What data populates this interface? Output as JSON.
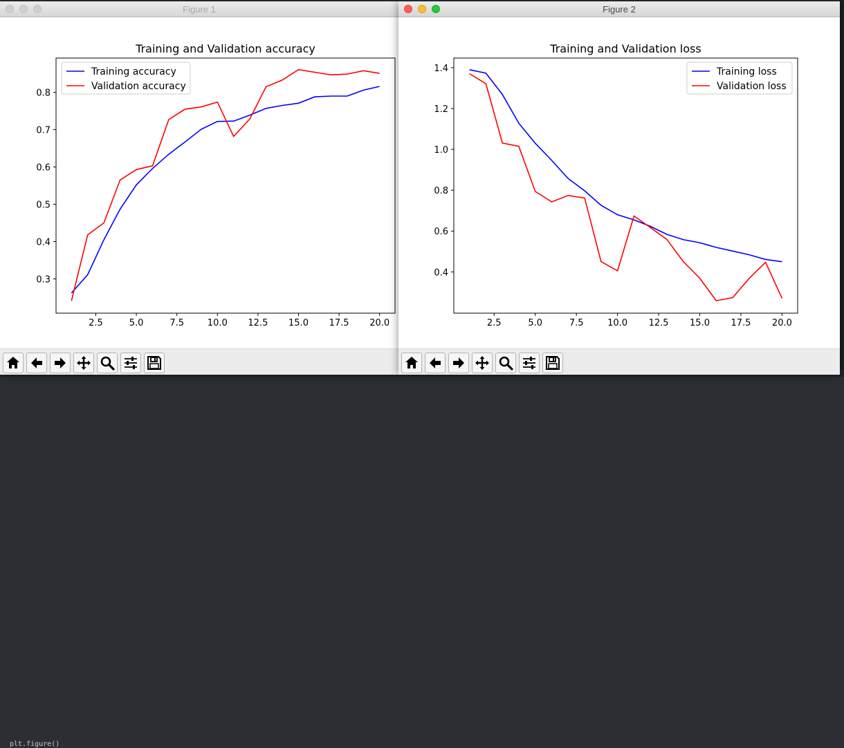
{
  "background": {
    "terminal_text": "plt.figure()"
  },
  "windows": [
    {
      "title": "Figure 1",
      "chart_data": {
        "type": "line",
        "title": "Training and Validation accuracy",
        "xlabel": "",
        "ylabel": "",
        "xlim": [
          0.05,
          20.95
        ],
        "ylim": [
          0.208,
          0.892
        ],
        "x_ticks": [
          2.5,
          5.0,
          7.5,
          10.0,
          12.5,
          15.0,
          17.5,
          20.0
        ],
        "x_tick_labels": [
          "2.5",
          "5.0",
          "7.5",
          "10.0",
          "12.5",
          "15.0",
          "17.5",
          "20.0"
        ],
        "y_ticks": [
          0.3,
          0.4,
          0.5,
          0.6,
          0.7,
          0.8
        ],
        "y_tick_labels": [
          "0.3",
          "0.4",
          "0.5",
          "0.6",
          "0.7",
          "0.8"
        ],
        "grid": false,
        "legend": "top-left",
        "x": [
          1,
          2,
          3,
          4,
          5,
          6,
          7,
          8,
          9,
          10,
          11,
          12,
          13,
          14,
          15,
          16,
          17,
          18,
          19,
          20
        ],
        "series": [
          {
            "name": "Training accuracy",
            "color": "#0000ff",
            "values": [
              0.262,
              0.311,
              0.405,
              0.487,
              0.552,
              0.596,
              0.634,
              0.667,
              0.701,
              0.722,
              0.723,
              0.739,
              0.757,
              0.765,
              0.771,
              0.788,
              0.79,
              0.79,
              0.806,
              0.816
            ]
          },
          {
            "name": "Validation accuracy",
            "color": "#ff0000",
            "values": [
              0.241,
              0.418,
              0.45,
              0.565,
              0.593,
              0.603,
              0.727,
              0.755,
              0.761,
              0.774,
              0.682,
              0.729,
              0.815,
              0.833,
              0.861,
              0.854,
              0.847,
              0.849,
              0.858,
              0.851
            ]
          }
        ]
      }
    },
    {
      "title": "Figure 2",
      "chart_data": {
        "type": "line",
        "title": "Training and Validation loss",
        "xlabel": "",
        "ylabel": "",
        "xlim": [
          0.05,
          20.95
        ],
        "ylim": [
          0.198,
          1.447
        ],
        "x_ticks": [
          2.5,
          5.0,
          7.5,
          10.0,
          12.5,
          15.0,
          17.5,
          20.0
        ],
        "x_tick_labels": [
          "2.5",
          "5.0",
          "7.5",
          "10.0",
          "12.5",
          "15.0",
          "17.5",
          "20.0"
        ],
        "y_ticks": [
          0.4,
          0.6,
          0.8,
          1.0,
          1.2,
          1.4
        ],
        "y_tick_labels": [
          "0.4",
          "0.6",
          "0.8",
          "1.0",
          "1.2",
          "1.4"
        ],
        "grid": false,
        "legend": "top-right",
        "x": [
          1,
          2,
          3,
          4,
          5,
          6,
          7,
          8,
          9,
          10,
          11,
          12,
          13,
          14,
          15,
          16,
          17,
          18,
          19,
          20
        ],
        "series": [
          {
            "name": "Training loss",
            "color": "#0000ff",
            "values": [
              1.39,
              1.373,
              1.269,
              1.128,
              1.03,
              0.946,
              0.857,
              0.797,
              0.726,
              0.68,
              0.655,
              0.623,
              0.584,
              0.558,
              0.543,
              0.52,
              0.502,
              0.484,
              0.461,
              0.45
            ]
          },
          {
            "name": "Validation loss",
            "color": "#ff0000",
            "values": [
              1.371,
              1.321,
              1.031,
              1.015,
              0.794,
              0.743,
              0.774,
              0.762,
              0.451,
              0.405,
              0.674,
              0.617,
              0.559,
              0.451,
              0.369,
              0.259,
              0.274,
              0.368,
              0.447,
              0.271
            ]
          }
        ]
      }
    }
  ],
  "toolbar_buttons": [
    {
      "name": "home-button",
      "icon": "home-icon"
    },
    {
      "name": "back-button",
      "icon": "arrow-left-icon"
    },
    {
      "name": "forward-button",
      "icon": "arrow-right-icon"
    },
    {
      "name": "pan-button",
      "icon": "move-icon"
    },
    {
      "name": "zoom-button",
      "icon": "magnifier-icon"
    },
    {
      "name": "configure-subplots-button",
      "icon": "sliders-icon"
    },
    {
      "name": "save-button",
      "icon": "floppy-disk-icon"
    }
  ]
}
